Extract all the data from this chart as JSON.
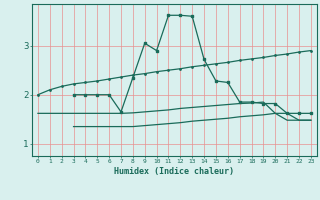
{
  "xlabel": "Humidex (Indice chaleur)",
  "background_color": "#d9f0ee",
  "grid_color": "#e89090",
  "line_color": "#1a6b5a",
  "xlim": [
    -0.5,
    23.5
  ],
  "ylim": [
    0.75,
    3.85
  ],
  "yticks": [
    1,
    2,
    3
  ],
  "xticks": [
    0,
    1,
    2,
    3,
    4,
    5,
    6,
    7,
    8,
    9,
    10,
    11,
    12,
    13,
    14,
    15,
    16,
    17,
    18,
    19,
    20,
    21,
    22,
    23
  ],
  "line1_x": [
    0,
    1,
    2,
    3,
    4,
    5,
    6,
    7,
    8,
    9,
    10,
    11,
    12,
    13,
    14,
    15,
    16,
    17,
    18,
    19,
    20,
    21,
    22,
    23
  ],
  "line1_y": [
    2.0,
    2.1,
    2.17,
    2.22,
    2.25,
    2.28,
    2.32,
    2.36,
    2.4,
    2.43,
    2.47,
    2.5,
    2.53,
    2.57,
    2.6,
    2.63,
    2.66,
    2.7,
    2.73,
    2.76,
    2.8,
    2.83,
    2.87,
    2.9
  ],
  "line2_x": [
    3,
    4,
    5,
    6,
    7,
    8,
    9,
    10,
    11,
    12,
    13,
    14,
    15,
    16,
    17,
    18,
    19,
    20,
    21,
    22,
    23
  ],
  "line2_y": [
    2.0,
    2.0,
    2.0,
    2.0,
    1.65,
    2.35,
    3.05,
    2.9,
    3.62,
    3.62,
    3.6,
    2.72,
    2.28,
    2.25,
    1.85,
    1.85,
    1.82,
    1.82,
    1.62,
    1.62,
    1.62
  ],
  "line3_x": [
    0,
    1,
    2,
    3,
    4,
    5,
    6,
    7,
    8,
    9,
    10,
    11,
    12,
    13,
    14,
    15,
    16,
    17,
    18,
    19,
    20,
    21,
    22,
    23
  ],
  "line3_y": [
    1.62,
    1.62,
    1.62,
    1.62,
    1.62,
    1.62,
    1.62,
    1.62,
    1.63,
    1.65,
    1.67,
    1.69,
    1.72,
    1.74,
    1.76,
    1.78,
    1.8,
    1.82,
    1.83,
    1.85,
    1.62,
    1.62,
    1.48,
    1.48
  ],
  "line4_x": [
    3,
    4,
    5,
    6,
    7,
    8,
    9,
    10,
    11,
    12,
    13,
    14,
    15,
    16,
    17,
    18,
    19,
    20,
    21,
    22,
    23
  ],
  "line4_y": [
    1.35,
    1.35,
    1.35,
    1.35,
    1.35,
    1.35,
    1.37,
    1.39,
    1.41,
    1.43,
    1.46,
    1.48,
    1.5,
    1.52,
    1.55,
    1.57,
    1.59,
    1.62,
    1.48,
    1.48,
    1.48
  ]
}
